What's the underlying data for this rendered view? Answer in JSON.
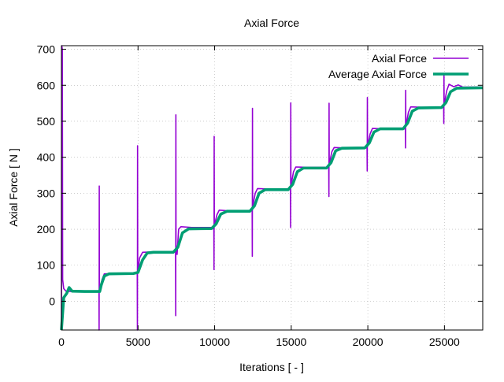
{
  "chart_data": {
    "type": "line",
    "title": "Axial Force",
    "xlabel": "Iterations [ - ]",
    "ylabel": "Axial Force [ N ]",
    "xlim": [
      0,
      27500
    ],
    "ylim": [
      -80,
      710
    ],
    "xticks": [
      0,
      5000,
      10000,
      15000,
      20000,
      25000
    ],
    "yticks": [
      0,
      100,
      200,
      300,
      400,
      500,
      600,
      700
    ],
    "grid": true,
    "legend_position": "top-right",
    "series": [
      {
        "name": "Axial Force",
        "color": "#9400d3",
        "points": [
          [
            0,
            -80
          ],
          [
            20,
            710
          ],
          [
            60,
            700
          ],
          [
            80,
            60
          ],
          [
            150,
            35
          ],
          [
            300,
            28
          ],
          [
            600,
            27
          ],
          [
            1500,
            27
          ],
          [
            2450,
            27
          ],
          [
            2460,
            -80
          ],
          [
            2470,
            320
          ],
          [
            2480,
            27
          ],
          [
            2650,
            60
          ],
          [
            2800,
            76
          ],
          [
            3500,
            77
          ],
          [
            4950,
            77
          ],
          [
            4960,
            -80
          ],
          [
            4970,
            432
          ],
          [
            4980,
            78
          ],
          [
            5100,
            120
          ],
          [
            5300,
            136
          ],
          [
            6000,
            137
          ],
          [
            7450,
            137
          ],
          [
            7460,
            -40
          ],
          [
            7470,
            518
          ],
          [
            7480,
            150
          ],
          [
            7550,
            130
          ],
          [
            7650,
            200
          ],
          [
            7800,
            207
          ],
          [
            8500,
            205
          ],
          [
            9950,
            205
          ],
          [
            9960,
            88
          ],
          [
            9970,
            458
          ],
          [
            9980,
            210
          ],
          [
            10150,
            240
          ],
          [
            10300,
            253
          ],
          [
            11000,
            251
          ],
          [
            12450,
            251
          ],
          [
            12460,
            125
          ],
          [
            12470,
            536
          ],
          [
            12480,
            262
          ],
          [
            12650,
            300
          ],
          [
            12800,
            313
          ],
          [
            13500,
            312
          ],
          [
            14950,
            312
          ],
          [
            14960,
            205
          ],
          [
            14970,
            551
          ],
          [
            14980,
            320
          ],
          [
            15150,
            360
          ],
          [
            15300,
            373
          ],
          [
            16000,
            372
          ],
          [
            17450,
            372
          ],
          [
            17460,
            291
          ],
          [
            17470,
            550
          ],
          [
            17480,
            380
          ],
          [
            17650,
            415
          ],
          [
            17800,
            427
          ],
          [
            18500,
            426
          ],
          [
            19950,
            426
          ],
          [
            19960,
            362
          ],
          [
            19970,
            566
          ],
          [
            19980,
            430
          ],
          [
            20150,
            465
          ],
          [
            20300,
            480
          ],
          [
            21000,
            479
          ],
          [
            22450,
            479
          ],
          [
            22460,
            426
          ],
          [
            22470,
            586
          ],
          [
            22480,
            485
          ],
          [
            22650,
            525
          ],
          [
            22800,
            540
          ],
          [
            23500,
            539
          ],
          [
            24950,
            539
          ],
          [
            24960,
            494
          ],
          [
            24970,
            628
          ],
          [
            24980,
            545
          ],
          [
            25150,
            585
          ],
          [
            25300,
            603
          ],
          [
            25600,
            596
          ],
          [
            25900,
            601
          ],
          [
            26200,
            595
          ],
          [
            27500,
            595
          ]
        ]
      },
      {
        "name": "Average Axial Force",
        "color": "#009e73",
        "points": [
          [
            0,
            -80
          ],
          [
            150,
            10
          ],
          [
            350,
            22
          ],
          [
            500,
            38
          ],
          [
            700,
            28
          ],
          [
            1500,
            27
          ],
          [
            2500,
            27
          ],
          [
            2600,
            45
          ],
          [
            2800,
            70
          ],
          [
            3100,
            76
          ],
          [
            4700,
            77
          ],
          [
            5000,
            80
          ],
          [
            5300,
            115
          ],
          [
            5600,
            134
          ],
          [
            6000,
            136
          ],
          [
            7300,
            136
          ],
          [
            7600,
            150
          ],
          [
            7900,
            190
          ],
          [
            8300,
            201
          ],
          [
            9800,
            202
          ],
          [
            10100,
            215
          ],
          [
            10400,
            242
          ],
          [
            10800,
            250
          ],
          [
            12300,
            250
          ],
          [
            12600,
            265
          ],
          [
            12900,
            300
          ],
          [
            13300,
            310
          ],
          [
            14800,
            310
          ],
          [
            15100,
            325
          ],
          [
            15400,
            360
          ],
          [
            15800,
            370
          ],
          [
            17300,
            370
          ],
          [
            17600,
            385
          ],
          [
            17900,
            418
          ],
          [
            18300,
            425
          ],
          [
            19800,
            426
          ],
          [
            20100,
            440
          ],
          [
            20400,
            470
          ],
          [
            20800,
            479
          ],
          [
            22300,
            479
          ],
          [
            22600,
            495
          ],
          [
            22900,
            528
          ],
          [
            23300,
            537
          ],
          [
            24800,
            538
          ],
          [
            25100,
            552
          ],
          [
            25400,
            582
          ],
          [
            25800,
            592
          ],
          [
            27500,
            593
          ]
        ]
      }
    ]
  }
}
